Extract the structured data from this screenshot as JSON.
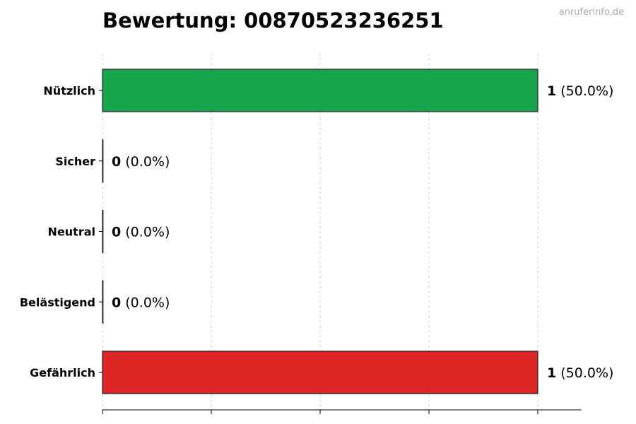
{
  "watermark": "anruferinfo.de",
  "chart_data": {
    "type": "bar",
    "orientation": "horizontal",
    "title": "Bewertung: 00870523236251",
    "categories": [
      "Nützlich",
      "Sicher",
      "Neutral",
      "Belästigend",
      "Gefährlich"
    ],
    "values": [
      1,
      0,
      0,
      0,
      1
    ],
    "data_labels": [
      {
        "count": "1",
        "percent": "(50.0%)"
      },
      {
        "count": "0",
        "percent": "(0.0%)"
      },
      {
        "count": "0",
        "percent": "(0.0%)"
      },
      {
        "count": "0",
        "percent": "(0.0%)"
      },
      {
        "count": "1",
        "percent": "(50.0%)"
      }
    ],
    "colors": [
      "#16a54a",
      "#16a54a",
      "#9ca3af",
      "#f59e0b",
      "#dc2626"
    ],
    "xlim": [
      0,
      1.1
    ],
    "xticks": [
      0,
      0.25,
      0.5,
      0.75,
      1
    ],
    "xtick_labels_shown": false,
    "grid": "x dashed",
    "xlabel": "",
    "ylabel": ""
  }
}
